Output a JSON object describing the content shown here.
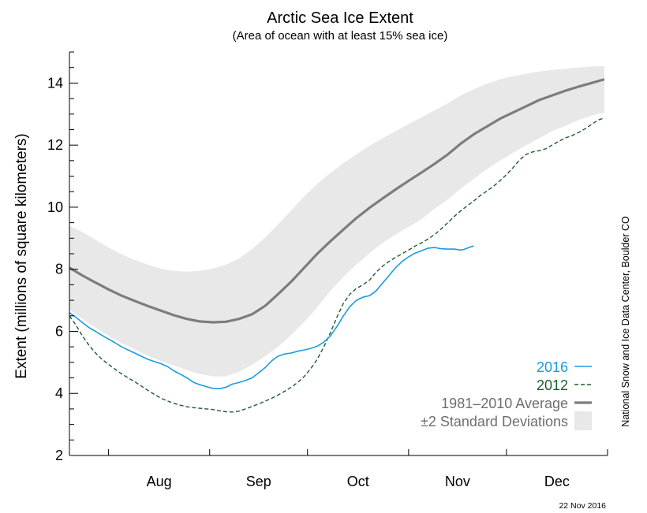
{
  "chart_data": {
    "type": "line",
    "title": "Arctic Sea Ice Extent",
    "subtitle": "(Area of ocean with at least 15% sea ice)",
    "ylabel": "Extent (millions of square kilometers)",
    "xlabel": "",
    "ylim": [
      2,
      15
    ],
    "y_ticks": [
      2,
      4,
      6,
      8,
      10,
      12,
      14
    ],
    "x_unit": "day of year",
    "xlim": [
      201,
      366
    ],
    "month_boundaries": [
      213,
      244,
      274,
      305,
      335,
      366
    ],
    "month_labels": [
      {
        "label": "Aug",
        "day": 228.5
      },
      {
        "label": "Sep",
        "day": 259
      },
      {
        "label": "Oct",
        "day": 289.5
      },
      {
        "label": "Nov",
        "day": 320
      },
      {
        "label": "Dec",
        "day": 350.5
      }
    ],
    "grid": false,
    "legend_position": "bottom-right",
    "series": [
      {
        "name": "2016",
        "color": "#1a9be0",
        "style": "solid",
        "x": [
          201,
          203,
          205,
          207,
          209,
          211,
          213,
          215,
          217,
          219,
          221,
          223,
          225,
          227,
          229,
          231,
          233,
          235,
          237,
          239,
          241,
          243,
          245,
          247,
          249,
          251,
          253,
          255,
          257,
          259,
          261,
          263,
          265,
          267,
          269,
          271,
          273,
          275,
          277,
          279,
          281,
          283,
          285,
          287,
          289,
          291,
          293,
          295,
          297,
          299,
          301,
          303,
          305,
          307,
          309,
          311,
          313,
          315,
          317,
          319,
          321,
          322,
          323,
          324,
          325
        ],
        "y": [
          6.6,
          6.45,
          6.28,
          6.12,
          6.0,
          5.87,
          5.75,
          5.63,
          5.5,
          5.4,
          5.3,
          5.2,
          5.1,
          5.03,
          4.96,
          4.87,
          4.73,
          4.62,
          4.5,
          4.36,
          4.28,
          4.22,
          4.16,
          4.15,
          4.2,
          4.3,
          4.35,
          4.42,
          4.5,
          4.66,
          4.83,
          5.05,
          5.2,
          5.27,
          5.3,
          5.36,
          5.4,
          5.45,
          5.52,
          5.65,
          5.85,
          6.15,
          6.5,
          6.8,
          7.0,
          7.1,
          7.15,
          7.3,
          7.55,
          7.8,
          8.05,
          8.25,
          8.4,
          8.52,
          8.6,
          8.68,
          8.7,
          8.66,
          8.65,
          8.65,
          8.62,
          8.64,
          8.68,
          8.72,
          8.75
        ]
      },
      {
        "name": "2012",
        "color": "#1f5c2e",
        "style": "dashed",
        "x": [
          201,
          203,
          205,
          207,
          209,
          211,
          213,
          215,
          217,
          219,
          221,
          223,
          225,
          227,
          229,
          231,
          233,
          235,
          237,
          239,
          241,
          243,
          245,
          247,
          249,
          251,
          253,
          255,
          257,
          259,
          261,
          263,
          265,
          267,
          269,
          271,
          273,
          275,
          277,
          279,
          281,
          283,
          285,
          287,
          289,
          291,
          293,
          295,
          297,
          299,
          301,
          303,
          305,
          307,
          309,
          311,
          313,
          315,
          317,
          319,
          321,
          323,
          325,
          327,
          329,
          331,
          333,
          335,
          337,
          339,
          341,
          343,
          345,
          347,
          349,
          351,
          353,
          355,
          357,
          359,
          361,
          363,
          365
        ],
        "y": [
          6.5,
          6.2,
          5.85,
          5.55,
          5.3,
          5.1,
          4.93,
          4.78,
          4.63,
          4.5,
          4.38,
          4.24,
          4.1,
          3.97,
          3.85,
          3.76,
          3.68,
          3.62,
          3.57,
          3.54,
          3.52,
          3.5,
          3.48,
          3.44,
          3.41,
          3.4,
          3.43,
          3.5,
          3.58,
          3.66,
          3.75,
          3.84,
          3.95,
          4.07,
          4.2,
          4.35,
          4.55,
          4.8,
          5.1,
          5.5,
          5.95,
          6.45,
          6.9,
          7.2,
          7.38,
          7.5,
          7.65,
          7.9,
          8.1,
          8.25,
          8.38,
          8.5,
          8.62,
          8.75,
          8.85,
          8.98,
          9.12,
          9.3,
          9.5,
          9.7,
          9.88,
          10.05,
          10.2,
          10.38,
          10.52,
          10.67,
          10.85,
          11.05,
          11.27,
          11.52,
          11.7,
          11.78,
          11.82,
          11.88,
          12.0,
          12.12,
          12.23,
          12.3,
          12.4,
          12.52,
          12.66,
          12.8,
          12.88
        ]
      },
      {
        "name": "1981–2010 Average",
        "color": "#7d7d7d",
        "style": "solid-thick",
        "x": [
          201,
          205,
          209,
          213,
          217,
          221,
          225,
          229,
          233,
          237,
          241,
          245,
          249,
          253,
          257,
          261,
          265,
          269,
          273,
          277,
          281,
          285,
          289,
          293,
          297,
          301,
          305,
          309,
          313,
          317,
          321,
          325,
          329,
          333,
          337,
          341,
          345,
          349,
          353,
          357,
          361,
          365
        ],
        "y": [
          8.05,
          7.8,
          7.57,
          7.35,
          7.15,
          6.98,
          6.82,
          6.67,
          6.52,
          6.4,
          6.32,
          6.29,
          6.31,
          6.4,
          6.55,
          6.82,
          7.2,
          7.6,
          8.05,
          8.5,
          8.9,
          9.28,
          9.65,
          9.98,
          10.28,
          10.57,
          10.85,
          11.12,
          11.4,
          11.7,
          12.05,
          12.35,
          12.6,
          12.85,
          13.05,
          13.25,
          13.45,
          13.6,
          13.75,
          13.88,
          14.0,
          14.12
        ]
      },
      {
        "name": "±2 Standard Deviations",
        "color": "#e8e8e8",
        "style": "band",
        "x": [
          201,
          205,
          209,
          213,
          217,
          221,
          225,
          229,
          233,
          237,
          241,
          245,
          249,
          253,
          257,
          261,
          265,
          269,
          273,
          277,
          281,
          285,
          289,
          293,
          297,
          301,
          305,
          309,
          313,
          317,
          321,
          325,
          329,
          333,
          337,
          341,
          345,
          349,
          353,
          357,
          361,
          365
        ],
        "lower": [
          6.7,
          6.4,
          6.12,
          5.85,
          5.62,
          5.42,
          5.22,
          5.05,
          4.9,
          4.75,
          4.62,
          4.55,
          4.55,
          4.7,
          4.92,
          5.2,
          5.5,
          5.88,
          6.3,
          6.78,
          7.3,
          7.75,
          8.15,
          8.52,
          8.85,
          9.12,
          9.36,
          9.62,
          9.95,
          10.25,
          10.6,
          10.92,
          11.22,
          11.5,
          11.75,
          12.0,
          12.22,
          12.45,
          12.62,
          12.8,
          12.95,
          13.05
        ],
        "upper": [
          9.4,
          9.2,
          8.95,
          8.7,
          8.48,
          8.3,
          8.15,
          8.02,
          7.95,
          7.92,
          7.95,
          8.02,
          8.15,
          8.35,
          8.65,
          9.02,
          9.45,
          9.9,
          10.35,
          10.75,
          11.1,
          11.42,
          11.7,
          11.98,
          12.22,
          12.45,
          12.68,
          12.9,
          13.12,
          13.35,
          13.6,
          13.8,
          13.98,
          14.12,
          14.22,
          14.3,
          14.37,
          14.42,
          14.46,
          14.5,
          14.53,
          14.55
        ]
      }
    ]
  },
  "credit": "National Snow and Ice Data Center, Boulder CO",
  "date_stamp": "22 Nov 2016"
}
